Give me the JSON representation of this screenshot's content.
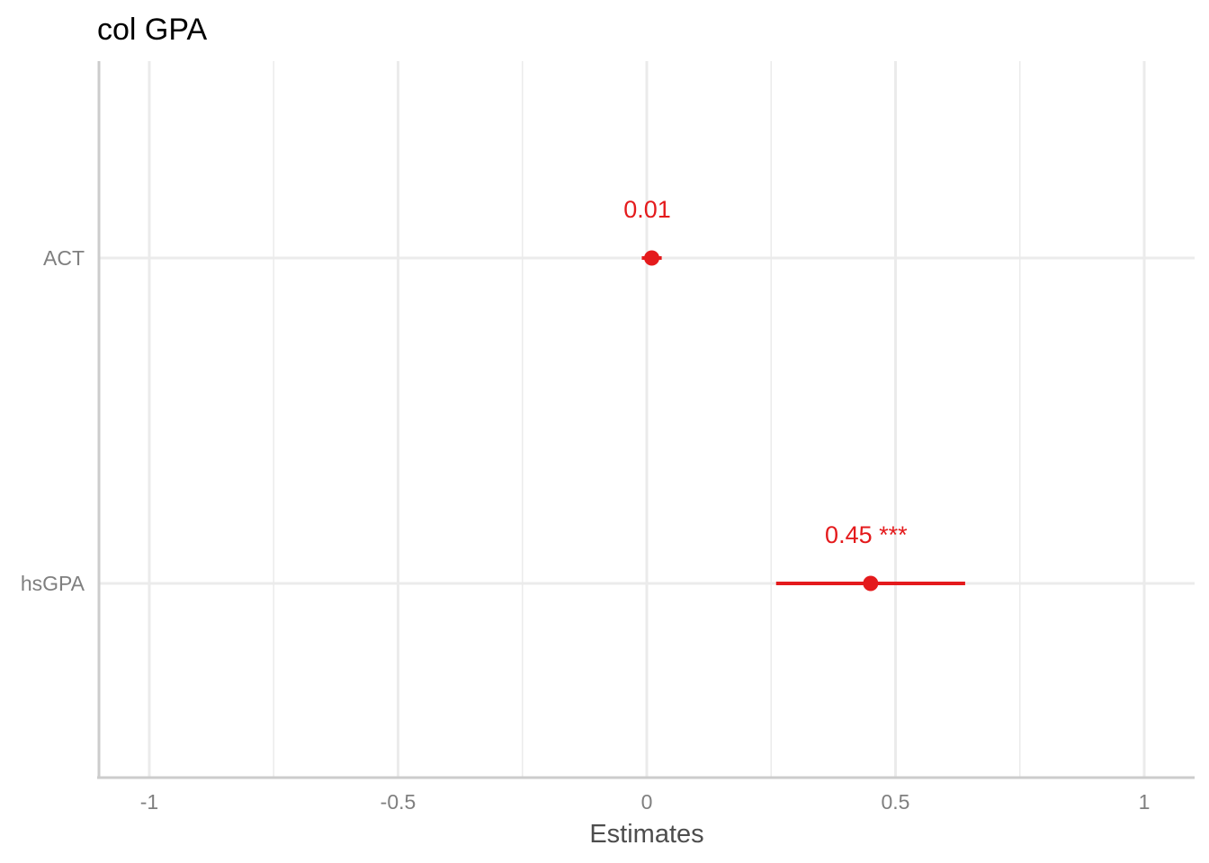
{
  "chart_data": {
    "type": "scatter",
    "subtype": "coefficient-plot",
    "title": "col GPA",
    "xlabel": "Estimates",
    "ylabel": "",
    "xlim": [
      -1.1,
      1.1
    ],
    "x_ticks": [
      -1,
      -0.5,
      0,
      0.5,
      1
    ],
    "x_tick_labels": [
      "-1",
      "-0.5",
      "0",
      "0.5",
      "1"
    ],
    "grid": true,
    "legend": "none",
    "color": "#e41a1c",
    "terms": [
      {
        "term": "ACT",
        "estimate": 0.01,
        "conf_low": -0.01,
        "conf_high": 0.03,
        "label": "0.01"
      },
      {
        "term": "hsGPA",
        "estimate": 0.45,
        "conf_low": 0.26,
        "conf_high": 0.64,
        "label": "0.45 ***"
      }
    ]
  }
}
